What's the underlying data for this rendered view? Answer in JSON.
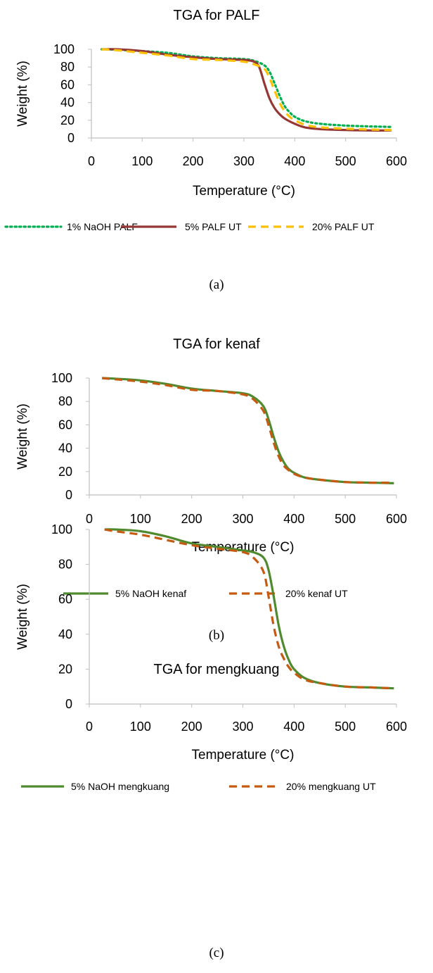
{
  "chart_data": [
    {
      "type": "line",
      "title": "TGA for PALF",
      "xlabel": "Temperature (°C)",
      "ylabel": "Weight (%)",
      "xlim": [
        0,
        600
      ],
      "ylim": [
        0,
        100
      ],
      "xticks": [
        "0",
        "100",
        "200",
        "300",
        "400",
        "500",
        "600"
      ],
      "yticks": [
        "0",
        "20",
        "40",
        "60",
        "80",
        "100"
      ],
      "grid": false,
      "legend_position": "bottom",
      "caption": "(a)",
      "series": [
        {
          "name": "1% NaOH PALF",
          "color": "#00b050",
          "dash": "dotted",
          "x": [
            20,
            50,
            100,
            150,
            200,
            250,
            300,
            320,
            340,
            350,
            360,
            370,
            380,
            390,
            400,
            420,
            450,
            500,
            550,
            590
          ],
          "y": [
            100,
            99.5,
            98,
            96,
            92,
            90,
            89,
            87,
            82,
            75,
            62,
            48,
            36,
            29,
            24,
            19,
            16,
            14,
            13,
            12.5
          ]
        },
        {
          "name": "5% PALF UT",
          "color": "#953735",
          "dash": "solid",
          "x": [
            20,
            50,
            100,
            150,
            200,
            250,
            300,
            320,
            330,
            340,
            350,
            360,
            370,
            380,
            400,
            420,
            450,
            500,
            550,
            590
          ],
          "y": [
            100,
            100,
            98,
            94,
            91,
            89,
            88,
            86,
            80,
            62,
            45,
            34,
            27,
            22,
            16,
            12,
            10,
            9,
            8.5,
            8.5
          ]
        },
        {
          "name": "20% PALF UT",
          "color": "#ffc000",
          "dash": "dashed",
          "x": [
            20,
            50,
            100,
            150,
            200,
            250,
            300,
            320,
            340,
            350,
            360,
            370,
            380,
            390,
            400,
            420,
            450,
            500,
            550,
            590
          ],
          "y": [
            100,
            99,
            96,
            93,
            89,
            88,
            86,
            83,
            78,
            68,
            54,
            40,
            30,
            24,
            20,
            15,
            12,
            10.5,
            9.5,
            9
          ]
        }
      ]
    },
    {
      "type": "line",
      "title": "TGA for kenaf",
      "xlabel": "Temperature (°C)",
      "ylabel": "Weight (%)",
      "xlim": [
        0,
        600
      ],
      "ylim": [
        0,
        100
      ],
      "xticks": [
        "0",
        "100",
        "200",
        "300",
        "400",
        "500",
        "600"
      ],
      "yticks": [
        "0",
        "20",
        "40",
        "60",
        "80",
        "100"
      ],
      "grid": false,
      "legend_position": "bottom",
      "caption": "(b)",
      "series": [
        {
          "name": "5% NaOH kenaf",
          "color": "#4f8a2f",
          "dash": "solid",
          "x": [
            25,
            50,
            100,
            150,
            200,
            250,
            300,
            320,
            340,
            350,
            360,
            370,
            380,
            390,
            400,
            420,
            450,
            500,
            550,
            595
          ],
          "y": [
            100,
            99.5,
            98,
            95,
            91,
            89,
            87,
            84,
            76,
            65,
            50,
            37,
            28,
            22,
            19,
            15,
            13,
            11,
            10.5,
            10
          ]
        },
        {
          "name": "20% kenaf UT",
          "color": "#c55a11",
          "dash": "dashed",
          "x": [
            25,
            50,
            100,
            150,
            200,
            250,
            300,
            320,
            340,
            350,
            360,
            370,
            380,
            390,
            400,
            420,
            450,
            500,
            550,
            595
          ],
          "y": [
            100,
            99,
            97,
            94,
            90,
            89,
            86,
            82,
            72,
            60,
            45,
            33,
            25,
            21,
            18,
            15,
            13,
            11,
            10.5,
            10.5
          ]
        }
      ]
    },
    {
      "type": "line",
      "title": "TGA for mengkuang",
      "xlabel": "Temperature (°C)",
      "ylabel": "Weight (%)",
      "xlim": [
        0,
        600
      ],
      "ylim": [
        0,
        100
      ],
      "xticks": [
        "0",
        "100",
        "200",
        "300",
        "400",
        "500",
        "600"
      ],
      "yticks": [
        "0",
        "20",
        "40",
        "60",
        "80",
        "100"
      ],
      "grid": false,
      "legend_position": "bottom",
      "caption": "(c)",
      "series": [
        {
          "name": "5% NaOH mengkuang",
          "color": "#4f8a2f",
          "dash": "solid",
          "x": [
            30,
            50,
            100,
            150,
            200,
            250,
            300,
            320,
            340,
            350,
            360,
            370,
            380,
            390,
            400,
            420,
            450,
            500,
            550,
            595
          ],
          "y": [
            100,
            100,
            99,
            96,
            92,
            90,
            88,
            87,
            84,
            77,
            62,
            45,
            33,
            25,
            20,
            15,
            12,
            10,
            9.5,
            9
          ]
        },
        {
          "name": "20% mengkuang UT",
          "color": "#c55a11",
          "dash": "dashed",
          "x": [
            30,
            50,
            100,
            150,
            200,
            250,
            300,
            320,
            340,
            350,
            360,
            370,
            380,
            390,
            400,
            420,
            450,
            500,
            550,
            595
          ],
          "y": [
            100,
            99,
            97,
            94,
            91,
            89,
            87,
            84,
            76,
            62,
            45,
            33,
            26,
            21,
            18,
            14,
            12,
            10,
            9.5,
            9
          ]
        }
      ]
    }
  ]
}
